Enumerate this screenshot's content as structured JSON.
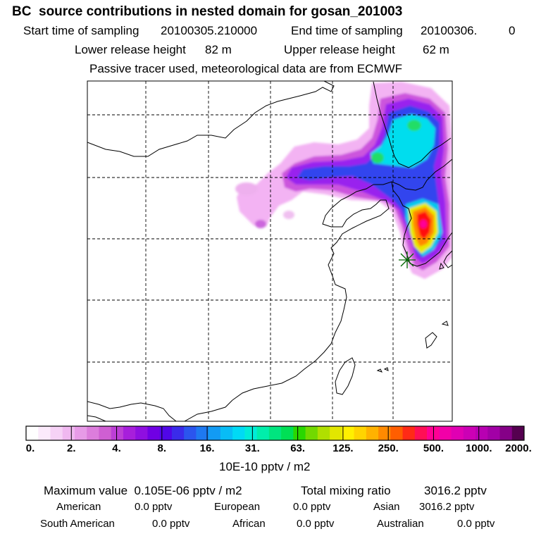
{
  "title": "BC  source contributions in nested domain for gosan_201003",
  "header": {
    "start_label": "Start time of sampling",
    "start_value": "20100305.210000",
    "end_label": "End time of sampling",
    "end_value": "20100306.",
    "end_suffix": "0",
    "lower_label": "Lower release height",
    "lower_value": "82 m",
    "upper_label": "Upper release height",
    "upper_value": "62 m",
    "note": "Passive tracer used, meteorological data are from ECMWF"
  },
  "colorbar": {
    "labels": [
      "0.",
      "2.",
      "4.",
      "8.",
      "16.",
      "31.",
      "63.",
      "125.",
      "250.",
      "500.",
      "1000.",
      "2000."
    ],
    "colors": [
      "#ffffff",
      "#fbeafb",
      "#f6d2f6",
      "#f0b8f0",
      "#e79be7",
      "#dc7ddc",
      "#cf5fd2",
      "#bd3fd6",
      "#a71fdb",
      "#8f0fe0",
      "#7000e4",
      "#5006e7",
      "#3a2bea",
      "#2b55ee",
      "#1e79f1",
      "#129bf4",
      "#08bcf6",
      "#00daf5",
      "#00ecd8",
      "#00eeab",
      "#00e57f",
      "#00df55",
      "#2ad700",
      "#72d900",
      "#b0df00",
      "#e2e600",
      "#fff000",
      "#ffd400",
      "#ffb200",
      "#ff8a00",
      "#ff5e00",
      "#ff2b16",
      "#ff0f55",
      "#ff0094",
      "#f200a8",
      "#e000b3",
      "#cc00b5",
      "#b800b2",
      "#a200a6",
      "#850087",
      "#550050"
    ],
    "unit": "10E-10 pptv / m2"
  },
  "stats": {
    "max_label": "Maximum value",
    "max_value": "0.105E-06 pptv / m2",
    "total_label": "Total mixing ratio",
    "total_value": "3016.2 pptv",
    "regions": [
      {
        "name": "American",
        "value": "0.0 pptv"
      },
      {
        "name": "European",
        "value": "0.0 pptv"
      },
      {
        "name": "Asian",
        "value": "3016.2 pptv"
      },
      {
        "name": "South American",
        "value": "0.0 pptv"
      },
      {
        "name": "African",
        "value": "0.0 pptv"
      },
      {
        "name": "Australian",
        "value": "0.0 pptv"
      }
    ]
  },
  "map": {
    "receptor_symbol": "star-marker",
    "plume_colors": {
      "light": "#ee99ee",
      "mid": "#cc55dd",
      "violet": "#9922ee",
      "blue": "#3344ee",
      "cyan": "#00ddee",
      "green": "#22dd66",
      "yellow": "#ffff00",
      "orange": "#ff8800",
      "red": "#ff1111",
      "pink": "#ff0099"
    }
  }
}
